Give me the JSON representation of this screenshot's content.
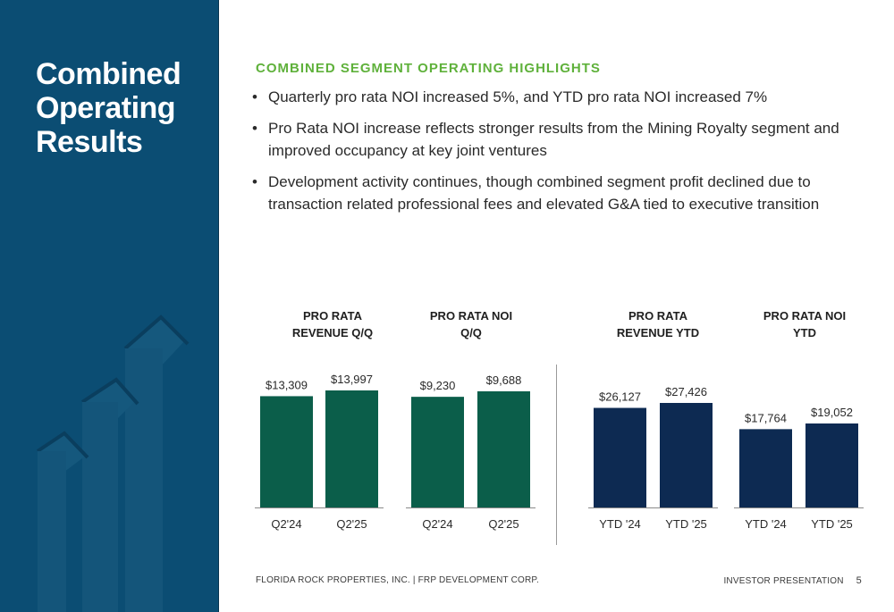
{
  "sidebar": {
    "title_lines": [
      "Combined",
      "Operating",
      "Results"
    ]
  },
  "highlights": {
    "heading": "COMBINED SEGMENT OPERATING HIGHLIGHTS",
    "bullets": [
      "Quarterly pro rata NOI increased 5%, and YTD pro rata NOI increased 7%",
      "Pro Rata NOI increase reflects stronger results from the Mining Royalty segment and improved occupancy at key joint ventures",
      "Development activity continues, though combined segment profit declined due to transaction related professional fees and elevated G&A tied to executive transition"
    ]
  },
  "colors": {
    "sidebar": "#0b4d73",
    "heading_green": "#5fb13b",
    "bar_green": "#0b5e4a",
    "bar_navy": "#0d2a52"
  },
  "chart_data": [
    {
      "type": "bar",
      "title_lines": [
        "PRO RATA",
        "REVENUE Q/Q"
      ],
      "categories": [
        "Q2'24",
        "Q2'25"
      ],
      "values": [
        13309,
        13997
      ],
      "labels": [
        "$13,309",
        "$13,997"
      ],
      "color": "#0b5e4a"
    },
    {
      "type": "bar",
      "title_lines": [
        "PRO RATA NOI",
        "Q/Q"
      ],
      "categories": [
        "Q2'24",
        "Q2'25"
      ],
      "values": [
        9230,
        9688
      ],
      "labels": [
        "$9,230",
        "$9,688"
      ],
      "color": "#0b5e4a"
    },
    {
      "type": "bar",
      "title_lines": [
        "PRO RATA",
        "REVENUE YTD"
      ],
      "categories": [
        "YTD '24",
        "YTD '25"
      ],
      "values": [
        26127,
        27426
      ],
      "labels": [
        "$26,127",
        "$27,426"
      ],
      "color": "#0d2a52"
    },
    {
      "type": "bar",
      "title_lines": [
        "PRO RATA NOI",
        "YTD"
      ],
      "categories": [
        "YTD '24",
        "YTD '25"
      ],
      "values": [
        17764,
        19052
      ],
      "labels": [
        "$17,764",
        "$19,052"
      ],
      "color": "#0d2a52"
    }
  ],
  "footer": {
    "company": "FLORIDA ROCK PROPERTIES, INC. | FRP DEVELOPMENT CORP.",
    "section": "INVESTOR PRESENTATION",
    "page_number": "5"
  }
}
